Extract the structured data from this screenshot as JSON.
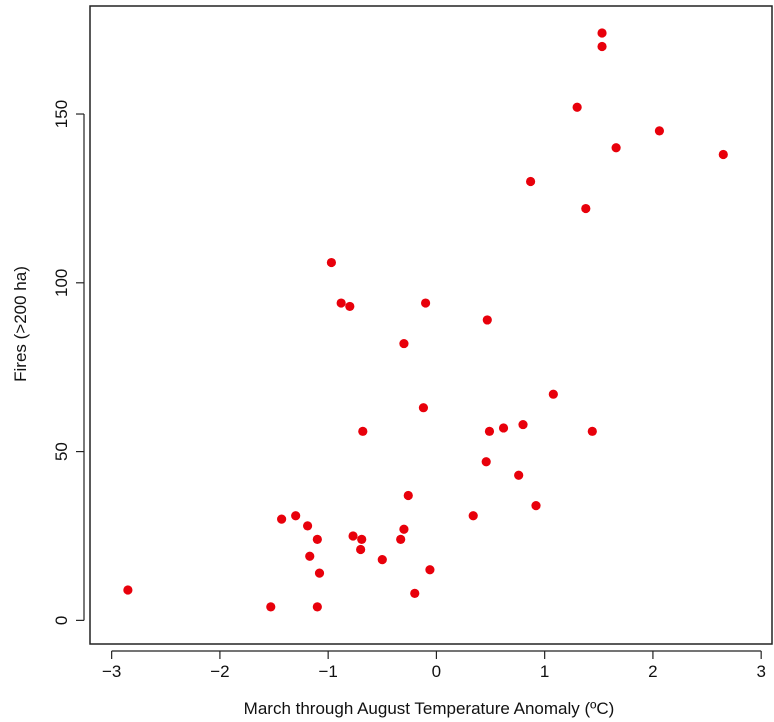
{
  "chart_data": {
    "type": "scatter",
    "title": "",
    "xlabel": "March through August Temperature Anomaly (ºC)",
    "ylabel": "Fires (>200 ha)",
    "xlim": [
      -3.2,
      3.1
    ],
    "ylim": [
      -7,
      182
    ],
    "xticks": [
      -3,
      -2,
      -1,
      0,
      1,
      2,
      3
    ],
    "xtick_labels": [
      "−3",
      "−2",
      "−1",
      "0",
      "1",
      "2",
      "3"
    ],
    "yticks": [
      0,
      50,
      100,
      150
    ],
    "ytick_labels": [
      "0",
      "50",
      "100",
      "150"
    ],
    "grid": false,
    "point_color": "#e8000b",
    "series": [
      {
        "points": [
          {
            "x": -2.85,
            "y": 9
          },
          {
            "x": -1.53,
            "y": 4
          },
          {
            "x": -1.43,
            "y": 30
          },
          {
            "x": -1.3,
            "y": 31
          },
          {
            "x": -1.19,
            "y": 28
          },
          {
            "x": -1.17,
            "y": 19
          },
          {
            "x": -1.1,
            "y": 24
          },
          {
            "x": -1.1,
            "y": 4
          },
          {
            "x": -1.08,
            "y": 14
          },
          {
            "x": -0.97,
            "y": 106
          },
          {
            "x": -0.88,
            "y": 94
          },
          {
            "x": -0.8,
            "y": 93
          },
          {
            "x": -0.77,
            "y": 25
          },
          {
            "x": -0.7,
            "y": 21
          },
          {
            "x": -0.69,
            "y": 24
          },
          {
            "x": -0.68,
            "y": 56
          },
          {
            "x": -0.5,
            "y": 18
          },
          {
            "x": -0.33,
            "y": 24
          },
          {
            "x": -0.3,
            "y": 27
          },
          {
            "x": -0.3,
            "y": 82
          },
          {
            "x": -0.26,
            "y": 37
          },
          {
            "x": -0.2,
            "y": 8
          },
          {
            "x": -0.12,
            "y": 63
          },
          {
            "x": -0.1,
            "y": 94
          },
          {
            "x": -0.06,
            "y": 15
          },
          {
            "x": 0.34,
            "y": 31
          },
          {
            "x": 0.46,
            "y": 47
          },
          {
            "x": 0.47,
            "y": 89
          },
          {
            "x": 0.49,
            "y": 56
          },
          {
            "x": 0.62,
            "y": 57
          },
          {
            "x": 0.76,
            "y": 43
          },
          {
            "x": 0.8,
            "y": 58
          },
          {
            "x": 0.87,
            "y": 130
          },
          {
            "x": 0.92,
            "y": 34
          },
          {
            "x": 1.08,
            "y": 67
          },
          {
            "x": 1.3,
            "y": 152
          },
          {
            "x": 1.38,
            "y": 122
          },
          {
            "x": 1.44,
            "y": 56
          },
          {
            "x": 1.53,
            "y": 174
          },
          {
            "x": 1.53,
            "y": 170
          },
          {
            "x": 1.66,
            "y": 140
          },
          {
            "x": 2.06,
            "y": 145
          },
          {
            "x": 2.65,
            "y": 138
          }
        ]
      }
    ]
  }
}
